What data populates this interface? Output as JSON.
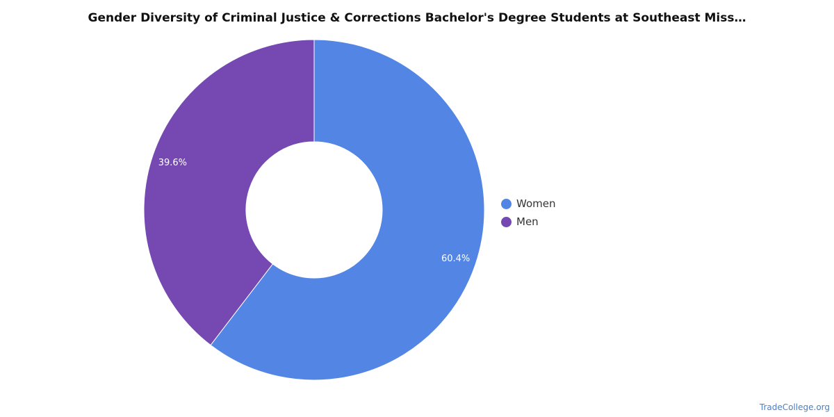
{
  "chart_data": {
    "type": "pie",
    "title": "Gender Diversity of Criminal Justice & Corrections Bachelor's Degree Students at Southeast Miss…",
    "donut": true,
    "categories": [
      "Women",
      "Men"
    ],
    "values": [
      60.4,
      39.6
    ],
    "value_labels": [
      "60.4%",
      "39.6%"
    ],
    "colors": [
      "#5386e4",
      "#7549b1"
    ],
    "legend_position": "right"
  },
  "source": "TradeCollege.org"
}
